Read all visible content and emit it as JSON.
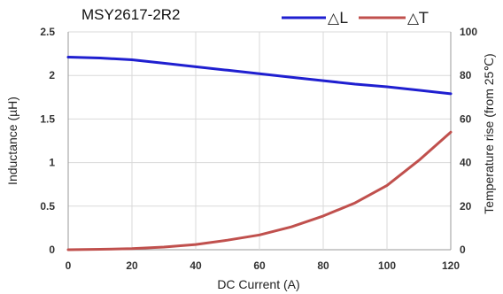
{
  "chart_data": {
    "type": "line",
    "title": "MSY2617-2R2",
    "xlabel": "DC Current (A)",
    "ylabel": "Inductance (µH)",
    "y2label": "Temperature rise (from 25℃)",
    "xlim": [
      0,
      120
    ],
    "ylim": [
      0,
      2.5
    ],
    "y2lim": [
      0,
      100
    ],
    "x_ticks": [
      "0",
      "20",
      "40",
      "60",
      "80",
      "100",
      "120"
    ],
    "y_ticks": [
      "0",
      "0.5",
      "1",
      "1.5",
      "2",
      "2.5"
    ],
    "y2_ticks": [
      "0",
      "20",
      "40",
      "60",
      "80",
      "100"
    ],
    "grid": true,
    "legend_position": "top-right",
    "series": [
      {
        "name": "△L",
        "axis": "left",
        "color": "#1f1fd0",
        "x": [
          0,
          10,
          20,
          30,
          40,
          50,
          60,
          70,
          80,
          90,
          100,
          110,
          120
        ],
        "values": [
          2.21,
          2.2,
          2.18,
          2.14,
          2.1,
          2.06,
          2.02,
          1.98,
          1.94,
          1.9,
          1.87,
          1.83,
          1.79
        ]
      },
      {
        "name": "△T",
        "axis": "right",
        "color": "#c0504d",
        "x": [
          0,
          10,
          20,
          30,
          40,
          50,
          60,
          70,
          80,
          90,
          100,
          110,
          120
        ],
        "values": [
          0,
          0.2,
          0.5,
          1.2,
          2.4,
          4.4,
          6.8,
          10.5,
          15.5,
          21.5,
          29.5,
          41,
          54
        ]
      }
    ]
  }
}
